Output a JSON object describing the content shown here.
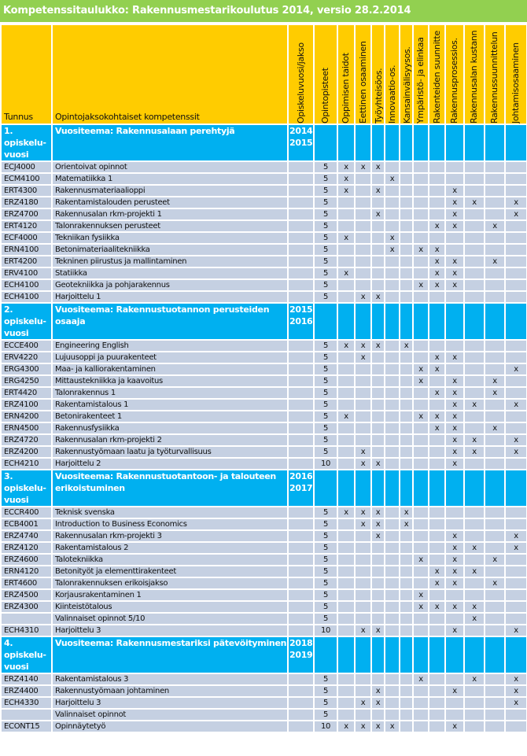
{
  "title": "Kompetenssitaulukko: Rakennusmestarikoulutus 2014, versio 28.2.2014",
  "colors": {
    "title_bg": "#92d050",
    "header_bg": "#ffcc00",
    "section_bg": "#00b0f0",
    "row_bg": "#c5d0e2"
  },
  "headers": {
    "code": "Tunnus",
    "name": "Opintojaksokohtaiset kompetenssit",
    "year": "Opiskeluvuosi/jakso",
    "credits": "Opintopisteet",
    "competences": [
      "Oppimisen taidot",
      "Eettinen osaaminen",
      "Työyhteisöos.",
      "Innovaatio-os.",
      "Kansainvälisyysos.",
      "Ympäristö- ja elinkaa",
      "Rakenteiden suunnitte",
      "Rakennusprosessios.",
      "Rakennusalan kustann",
      "Rakennussuunnittelun",
      "Johtamisosaaminen"
    ]
  },
  "sections": [
    {
      "label": "1. opiskelu-vuosi",
      "theme": "Vuositeema: Rakennusalaan perehtyjä",
      "year": "2014 2015",
      "items": [
        {
          "code": "ECJ4000",
          "name": "Orientoivat opinnot",
          "op": "5",
          "marks": [
            0,
            1,
            2
          ]
        },
        {
          "code": "ECM4100",
          "name": "Matematiikka 1",
          "op": "5",
          "marks": [
            0,
            3
          ]
        },
        {
          "code": "ERT4300",
          "name": "Rakennusmateriaalioppi",
          "op": "5",
          "marks": [
            0,
            2,
            7
          ]
        },
        {
          "code": "ERZ4180",
          "name": "Rakentamistalouden perusteet",
          "op": "5",
          "marks": [
            7,
            8,
            10
          ]
        },
        {
          "code": "ERZ4700",
          "name": "Rakennusalan rkm-projekti 1",
          "op": "5",
          "marks": [
            2,
            7,
            10
          ]
        },
        {
          "code": "ERT4120",
          "name": "Talonrakennuksen perusteet",
          "op": "5",
          "marks": [
            6,
            7,
            9
          ]
        },
        {
          "code": "ECF4000",
          "name": "Tekniikan fysiikka",
          "op": "5",
          "marks": [
            0,
            3
          ]
        },
        {
          "code": "ERN4100",
          "name": "Betonimateriaalitekniikka",
          "op": "5",
          "marks": [
            3,
            5,
            6
          ]
        },
        {
          "code": "ERT4200",
          "name": "Tekninen piirustus ja mallintaminen",
          "op": "5",
          "marks": [
            6,
            7,
            9
          ]
        },
        {
          "code": "ERV4100",
          "name": "Statiikka",
          "op": "5",
          "marks": [
            0,
            6,
            7
          ]
        },
        {
          "code": "ECH4100",
          "name": "Geotekniikka ja pohjarakennus",
          "op": "5",
          "marks": [
            5,
            6,
            7
          ]
        },
        {
          "code": "ECH4100",
          "name": "Harjoittelu 1",
          "op": "5",
          "marks": [
            1,
            2
          ]
        }
      ]
    },
    {
      "label": "2. opiskelu-vuosi",
      "theme": "Vuositeema: Rakennustuotannon perusteiden osaaja",
      "year": "2015 2016",
      "items": [
        {
          "code": "ECCE400",
          "name": "Engineering English",
          "op": "5",
          "marks": [
            0,
            1,
            2,
            4
          ]
        },
        {
          "code": "ERV4220",
          "name": "Lujuusoppi ja puurakenteet",
          "op": "5",
          "marks": [
            1,
            6,
            7
          ]
        },
        {
          "code": "ERG4300",
          "name": "Maa- ja kalliorakentaminen",
          "op": "5",
          "marks": [
            5,
            6,
            10
          ]
        },
        {
          "code": "ERG4250",
          "name": "Mittaustekniikka ja kaavoitus",
          "op": "5",
          "marks": [
            5,
            7,
            9
          ]
        },
        {
          "code": "ERT4420",
          "name": "Talonrakennus 1",
          "op": "5",
          "marks": [
            6,
            7,
            9
          ]
        },
        {
          "code": "ERZ4100",
          "name": "Rakentamistalous 1",
          "op": "5",
          "marks": [
            7,
            8,
            10
          ]
        },
        {
          "code": "ERN4200",
          "name": "Betonirakenteet 1",
          "op": "5",
          "marks": [
            0,
            5,
            6,
            7
          ]
        },
        {
          "code": "ERN4500",
          "name": "Rakennusfysiikka",
          "op": "5",
          "marks": [
            6,
            7,
            9
          ]
        },
        {
          "code": "ERZ4720",
          "name": "Rakennusalan rkm-projekti 2",
          "op": "5",
          "marks": [
            7,
            8,
            10
          ]
        },
        {
          "code": "ERZ4200",
          "name": "Rakennustyömaan laatu ja työturvallisuus",
          "op": "5",
          "marks": [
            1,
            7,
            8,
            10
          ]
        },
        {
          "code": "ECH4210",
          "name": "Harjoittelu 2",
          "op": "10",
          "marks": [
            1,
            2,
            7
          ]
        }
      ]
    },
    {
      "label": "3. opiskelu-vuosi",
      "theme": "Vuositeema: Rakennustuotantoon- ja talouteen erikoistuminen",
      "year": "2016 2017",
      "items": [
        {
          "code": "ECCR400",
          "name": "Teknisk svenska",
          "op": "5",
          "marks": [
            0,
            1,
            2,
            4
          ]
        },
        {
          "code": "ECB4001",
          "name": "Introduction to Business Economics",
          "op": "5",
          "marks": [
            1,
            2,
            4
          ]
        },
        {
          "code": "ERZ4740",
          "name": "Rakennusalan rkm-projekti 3",
          "op": "5",
          "marks": [
            2,
            7,
            10
          ]
        },
        {
          "code": "ERZ4120",
          "name": "Rakentamistalous 2",
          "op": "5",
          "marks": [
            7,
            8,
            10
          ]
        },
        {
          "code": "ERZ4600",
          "name": "Talotekniikka",
          "op": "5",
          "marks": [
            5,
            7,
            9
          ]
        },
        {
          "code": "ERN4120",
          "name": "Betonityöt ja elementtirakenteet",
          "op": "5",
          "marks": [
            6,
            7,
            8
          ]
        },
        {
          "code": "ERT4600",
          "name": "Talonrakennuksen erikoisjakso",
          "op": "5",
          "marks": [
            6,
            7,
            9
          ]
        },
        {
          "code": "ERZ4500",
          "name": "Korjausrakentaminen 1",
          "op": "5",
          "marks": [
            5
          ]
        },
        {
          "code": "ERZ4300",
          "name": "Kiinteistötalous",
          "op": "5",
          "marks": [
            5,
            6,
            7,
            8
          ]
        },
        {
          "code": "",
          "name": "Valinnaiset opinnot 5/10",
          "op": "5",
          "marks": [
            8
          ]
        },
        {
          "code": "ECH4310",
          "name": "Harjoittelu 3",
          "op": "10",
          "marks": [
            1,
            2,
            7,
            10
          ]
        }
      ]
    },
    {
      "label": "4. opiskelu-vuosi",
      "theme": "Vuositeema: Rakennusmestariksi pätevöityminen",
      "year": "2018 2019",
      "items": [
        {
          "code": "ERZ4140",
          "name": "Rakentamistalous 3",
          "op": "5",
          "marks": [
            5,
            8,
            10
          ]
        },
        {
          "code": "ERZ4400",
          "name": "Rakennustyömaan johtaminen",
          "op": "5",
          "marks": [
            2,
            7,
            10
          ]
        },
        {
          "code": "ECH4330",
          "name": "Harjoittelu 3",
          "op": "5",
          "marks": [
            1,
            2,
            10
          ]
        },
        {
          "code": "",
          "name": "Valinnaiset opinnot",
          "op": "5",
          "marks": []
        },
        {
          "code": "ECONT15",
          "name": "Opinnäytetyö",
          "op": "10",
          "marks": [
            0,
            1,
            2,
            3,
            7
          ]
        }
      ]
    }
  ],
  "mark_symbol": "x"
}
